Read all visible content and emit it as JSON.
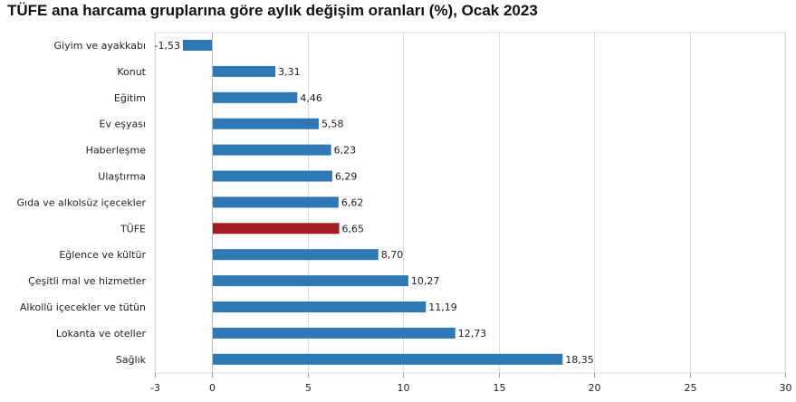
{
  "chart_data": {
    "type": "bar",
    "orientation": "horizontal",
    "title": "TÜFE ana harcama gruplarına göre aylık değişim oranları (%), Ocak 2023",
    "xlabel": "",
    "ylabel": "",
    "xlim": [
      -3,
      30
    ],
    "x_ticks": [
      -3,
      0,
      5,
      10,
      15,
      20,
      25,
      30
    ],
    "grid": true,
    "legend": "none",
    "categories": [
      "Giyim ve ayakkabı",
      "Konut",
      "Eğitim",
      "Ev eşyası",
      "Haberleşme",
      "Ulaştırma",
      "Gıda ve alkolsüz içecekler",
      "TÜFE",
      "Eğlence ve kültür",
      "Çeşitli mal ve hizmetler",
      "Alkollü içecekler ve tütün",
      "Lokanta ve oteller",
      "Sağlık"
    ],
    "values": [
      -1.53,
      3.31,
      4.46,
      5.58,
      6.23,
      6.29,
      6.62,
      6.65,
      8.7,
      10.27,
      11.19,
      12.73,
      18.35
    ],
    "value_labels": [
      "-1,53",
      "3,31",
      "4,46",
      "5,58",
      "6,23",
      "6,29",
      "6,62",
      "6,65",
      "8,70",
      "10,27",
      "11,19",
      "12,73",
      "18,35"
    ],
    "highlight_category": "TÜFE",
    "colors": {
      "bar": "#2e78b6",
      "highlight": "#a31a23",
      "grid": "#dcdcdc",
      "axis": "#999999"
    }
  }
}
